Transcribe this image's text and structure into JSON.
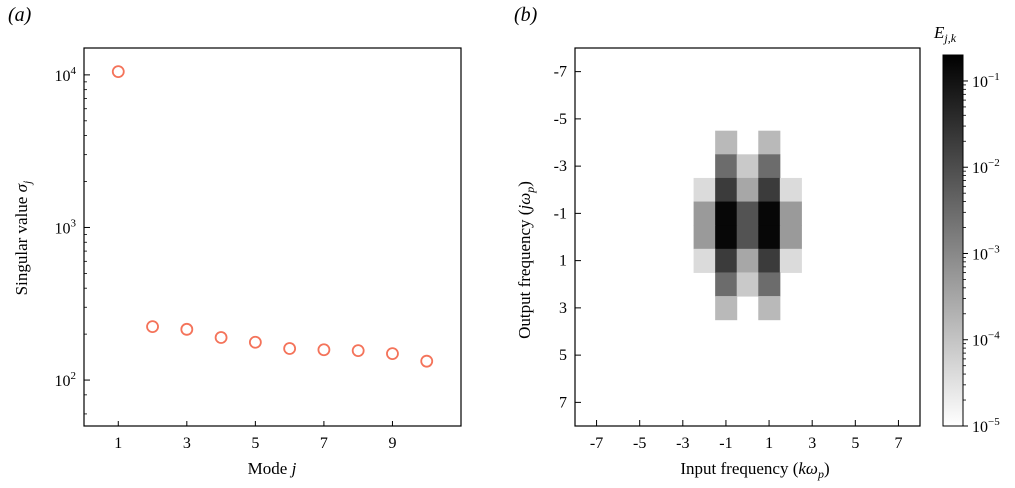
{
  "chart_data": [
    {
      "type": "scatter",
      "panel_label": "(a)",
      "xlabel": "Mode ",
      "xlabel_var": "j",
      "ylabel": "Singular value ",
      "ylabel_var": "σ",
      "ylabel_sub": "j",
      "y_scale": "log",
      "xlim": [
        0,
        11
      ],
      "ylim": [
        50,
        15000
      ],
      "x_ticks": [
        1,
        3,
        5,
        7,
        9
      ],
      "x_tick_labels": [
        "1",
        "3",
        "5",
        "7",
        "9"
      ],
      "y_ticks": [
        {
          "value": 10000,
          "base": "10",
          "exp": "4"
        },
        {
          "value": 1000,
          "base": "10",
          "exp": "3"
        },
        {
          "value": 100,
          "base": "10",
          "exp": "2"
        }
      ],
      "x": [
        1,
        2,
        3,
        4,
        5,
        6,
        7,
        8,
        9,
        10
      ],
      "y": [
        10500,
        224,
        215,
        190,
        177,
        161,
        158,
        156,
        149,
        133
      ],
      "marker_color": "#f4735a"
    },
    {
      "type": "heatmap",
      "panel_label": "(b)",
      "xlabel": "Input frequency (",
      "xlabel_var": "kω",
      "xlabel_sub": "p",
      "xlabel_end": ")",
      "ylabel": "Output frequency (",
      "ylabel_var": "jω",
      "ylabel_sub": "p",
      "ylabel_end": ")",
      "x_range": [
        -8,
        8
      ],
      "y_range": [
        -8,
        8
      ],
      "y_inverted": true,
      "x_ticks": [
        -7,
        -5,
        -3,
        -1,
        1,
        3,
        5,
        7
      ],
      "x_tick_labels": [
        "-7",
        "-5",
        "-3",
        "-1",
        "1",
        "3",
        "5",
        "7"
      ],
      "y_ticks": [
        -7,
        -5,
        -3,
        -1,
        1,
        3,
        5,
        7
      ],
      "y_tick_labels": [
        "-7",
        "-5",
        "-3",
        "-1",
        "1",
        "3",
        "5",
        "7"
      ],
      "colorbar": {
        "title": "E",
        "title_sub": "j,k",
        "scale": "log",
        "range": [
          1e-05,
          0.2
        ],
        "ticks": [
          {
            "value": 0.1,
            "base": "10",
            "exp": "−1"
          },
          {
            "value": 0.01,
            "base": "10",
            "exp": "−2"
          },
          {
            "value": 0.001,
            "base": "10",
            "exp": "−3"
          },
          {
            "value": 0.0001,
            "base": "10",
            "exp": "−4"
          },
          {
            "value": 1e-05,
            "base": "10",
            "exp": "−5"
          }
        ],
        "colormap": "gray_r"
      },
      "cells": [
        {
          "j": -4,
          "k": -1,
          "value": 0.00015
        },
        {
          "j": -4,
          "k": 1,
          "value": 0.00015
        },
        {
          "j": -3,
          "k": -1,
          "value": 0.003
        },
        {
          "j": -3,
          "k": 0,
          "value": 8e-05
        },
        {
          "j": -3,
          "k": 1,
          "value": 0.003
        },
        {
          "j": -2,
          "k": -2,
          "value": 4e-05
        },
        {
          "j": -2,
          "k": -1,
          "value": 0.02
        },
        {
          "j": -2,
          "k": 0,
          "value": 0.0003
        },
        {
          "j": -2,
          "k": 1,
          "value": 0.02
        },
        {
          "j": -2,
          "k": 2,
          "value": 4e-05
        },
        {
          "j": -1,
          "k": -2,
          "value": 0.0005
        },
        {
          "j": -1,
          "k": -1,
          "value": 0.15
        },
        {
          "j": -1,
          "k": 0,
          "value": 0.008
        },
        {
          "j": -1,
          "k": 1,
          "value": 0.15
        },
        {
          "j": -1,
          "k": 2,
          "value": 0.0005
        },
        {
          "j": 0,
          "k": -2,
          "value": 0.0005
        },
        {
          "j": 0,
          "k": -1,
          "value": 0.15
        },
        {
          "j": 0,
          "k": 0,
          "value": 0.008
        },
        {
          "j": 0,
          "k": 1,
          "value": 0.15
        },
        {
          "j": 0,
          "k": 2,
          "value": 0.0005
        },
        {
          "j": 1,
          "k": -2,
          "value": 4e-05
        },
        {
          "j": 1,
          "k": -1,
          "value": 0.02
        },
        {
          "j": 1,
          "k": 0,
          "value": 0.0003
        },
        {
          "j": 1,
          "k": 1,
          "value": 0.02
        },
        {
          "j": 1,
          "k": 2,
          "value": 4e-05
        },
        {
          "j": 2,
          "k": -1,
          "value": 0.003
        },
        {
          "j": 2,
          "k": 0,
          "value": 8e-05
        },
        {
          "j": 2,
          "k": 1,
          "value": 0.003
        },
        {
          "j": 3,
          "k": -1,
          "value": 0.00015
        },
        {
          "j": 3,
          "k": 1,
          "value": 0.00015
        }
      ]
    }
  ]
}
